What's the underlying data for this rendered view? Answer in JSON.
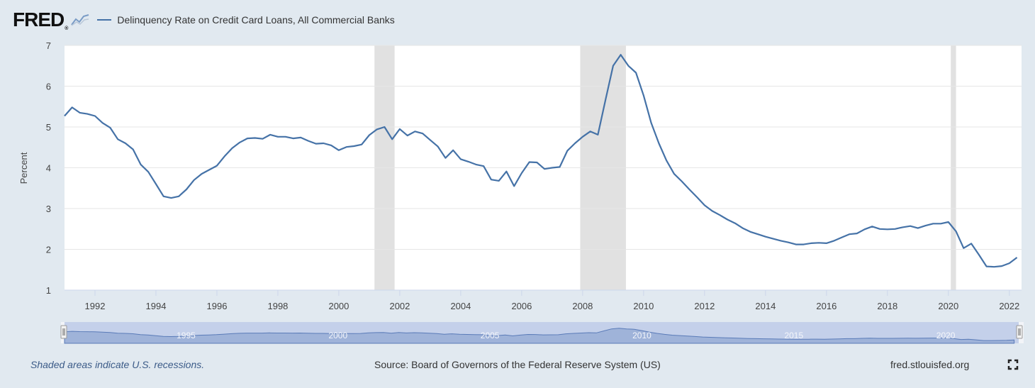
{
  "header": {
    "logo_text": "FRED",
    "logo_reg": "®",
    "series_title": "Delinquency Rate on Credit Card Loans, All Commercial Banks"
  },
  "footer": {
    "note": "Shaded areas indicate U.S. recessions.",
    "source": "Source: Board of Governors of the Federal Reserve System (US)",
    "link": "fred.stlouisfed.org"
  },
  "icons": {
    "logo_graph": "line-graph-icon",
    "fullscreen": "fullscreen-icon"
  },
  "colors": {
    "series": "#4572a7",
    "recession": "#e1e1e1",
    "background": "#e1e9f0",
    "navigator_fill": "#9fb3d9"
  },
  "chart_data": {
    "type": "line",
    "title": "Delinquency Rate on Credit Card Loans, All Commercial Banks",
    "ylabel": "Percent",
    "xlabel": "",
    "ylim": [
      1,
      7
    ],
    "xlim": [
      1991.0,
      2022.4
    ],
    "y_ticks": [
      1,
      2,
      3,
      4,
      5,
      6,
      7
    ],
    "x_ticks": [
      "1992",
      "1994",
      "1996",
      "1998",
      "2000",
      "2002",
      "2004",
      "2006",
      "2008",
      "2010",
      "2012",
      "2014",
      "2016",
      "2018",
      "2020",
      "2022"
    ],
    "navigator_labels": [
      "1995",
      "2000",
      "2005",
      "2010",
      "2015",
      "2020"
    ],
    "grid": true,
    "recessions": [
      [
        2001.17,
        2001.83
      ],
      [
        2007.92,
        2009.42
      ],
      [
        2020.08,
        2020.25
      ]
    ],
    "series": [
      {
        "name": "Delinquency Rate on Credit Card Loans, All Commercial Banks",
        "x": [
          1991.0,
          1991.25,
          1991.5,
          1991.75,
          1992.0,
          1992.25,
          1992.5,
          1992.75,
          1993.0,
          1993.25,
          1993.5,
          1993.75,
          1994.0,
          1994.25,
          1994.5,
          1994.75,
          1995.0,
          1995.25,
          1995.5,
          1995.75,
          1996.0,
          1996.25,
          1996.5,
          1996.75,
          1997.0,
          1997.25,
          1997.5,
          1997.75,
          1998.0,
          1998.25,
          1998.5,
          1998.75,
          1999.0,
          1999.25,
          1999.5,
          1999.75,
          2000.0,
          2000.25,
          2000.5,
          2000.75,
          2001.0,
          2001.25,
          2001.5,
          2001.75,
          2002.0,
          2002.25,
          2002.5,
          2002.75,
          2003.0,
          2003.25,
          2003.5,
          2003.75,
          2004.0,
          2004.25,
          2004.5,
          2004.75,
          2005.0,
          2005.25,
          2005.5,
          2005.75,
          2006.0,
          2006.25,
          2006.5,
          2006.75,
          2007.0,
          2007.25,
          2007.5,
          2007.75,
          2008.0,
          2008.25,
          2008.5,
          2008.75,
          2009.0,
          2009.25,
          2009.5,
          2009.75,
          2010.0,
          2010.25,
          2010.5,
          2010.75,
          2011.0,
          2011.25,
          2011.5,
          2011.75,
          2012.0,
          2012.25,
          2012.5,
          2012.75,
          2013.0,
          2013.25,
          2013.5,
          2013.75,
          2014.0,
          2014.25,
          2014.5,
          2014.75,
          2015.0,
          2015.25,
          2015.5,
          2015.75,
          2016.0,
          2016.25,
          2016.5,
          2016.75,
          2017.0,
          2017.25,
          2017.5,
          2017.75,
          2018.0,
          2018.25,
          2018.5,
          2018.75,
          2019.0,
          2019.25,
          2019.5,
          2019.75,
          2020.0,
          2020.25,
          2020.5,
          2020.75,
          2021.0,
          2021.25,
          2021.5,
          2021.75,
          2022.0,
          2022.25
        ],
        "y": [
          5.27,
          5.48,
          5.35,
          5.32,
          5.27,
          5.1,
          4.98,
          4.7,
          4.6,
          4.45,
          4.08,
          3.9,
          3.6,
          3.3,
          3.26,
          3.3,
          3.47,
          3.7,
          3.85,
          3.95,
          4.05,
          4.28,
          4.48,
          4.62,
          4.72,
          4.73,
          4.71,
          4.81,
          4.76,
          4.76,
          4.72,
          4.74,
          4.66,
          4.59,
          4.6,
          4.55,
          4.43,
          4.51,
          4.53,
          4.57,
          4.8,
          4.94,
          5.0,
          4.7,
          4.95,
          4.79,
          4.89,
          4.84,
          4.68,
          4.52,
          4.24,
          4.43,
          4.21,
          4.15,
          4.08,
          4.04,
          3.71,
          3.68,
          3.91,
          3.55,
          3.87,
          4.14,
          4.13,
          3.97,
          4.0,
          4.02,
          4.42,
          4.6,
          4.76,
          4.89,
          4.81,
          5.66,
          6.5,
          6.77,
          6.5,
          6.33,
          5.77,
          5.1,
          4.6,
          4.18,
          3.85,
          3.67,
          3.47,
          3.28,
          3.08,
          2.94,
          2.84,
          2.73,
          2.64,
          2.52,
          2.43,
          2.37,
          2.31,
          2.26,
          2.21,
          2.17,
          2.12,
          2.12,
          2.15,
          2.16,
          2.15,
          2.21,
          2.29,
          2.37,
          2.39,
          2.49,
          2.56,
          2.5,
          2.49,
          2.5,
          2.54,
          2.57,
          2.52,
          2.58,
          2.63,
          2.63,
          2.67,
          2.44,
          2.03,
          2.14,
          1.87,
          1.58,
          1.57,
          1.59,
          1.66,
          1.8
        ]
      }
    ]
  }
}
